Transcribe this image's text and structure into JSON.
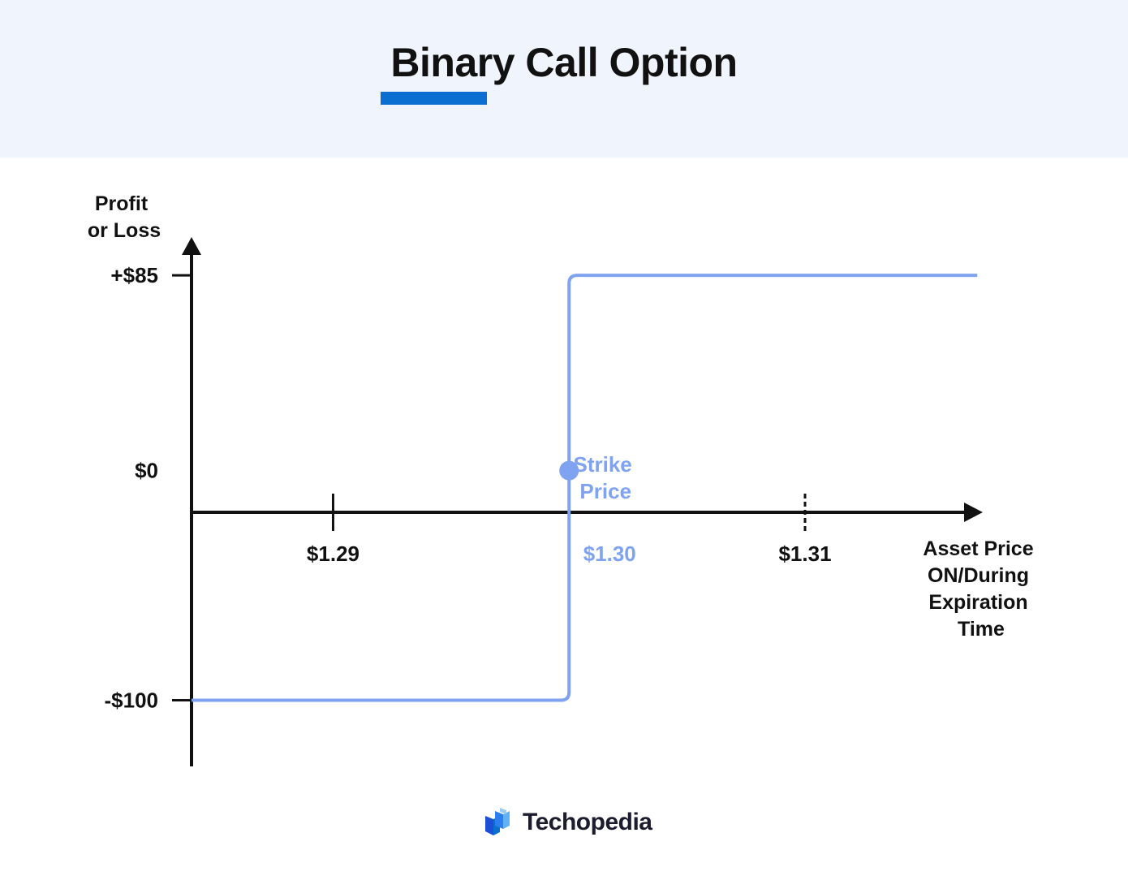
{
  "header": {
    "title": "Binary Call Option",
    "accent_color": "#0a6fd1",
    "background": "#eff4fd"
  },
  "chart_data": {
    "type": "line",
    "title": "Binary Call Option",
    "ylabel_lines": [
      "Profit",
      "or Loss"
    ],
    "xlabel_lines": [
      "Asset Price",
      "ON/During",
      "Expiration",
      "Time"
    ],
    "y_ticks": [
      {
        "value": 85,
        "label": "+$85"
      },
      {
        "value": 0,
        "label": "$0"
      },
      {
        "value": -100,
        "label": "-$100"
      }
    ],
    "x_ticks": [
      {
        "value": 1.29,
        "label": "$1.29"
      },
      {
        "value": 1.31,
        "label": "$1.31"
      }
    ],
    "strike": {
      "value": 1.3,
      "label": "$1.30",
      "annotation_lines": [
        "Strike",
        "Price"
      ]
    },
    "series": [
      {
        "color": "#7fa3f0",
        "x": [
          1.284,
          1.3,
          1.3,
          1.3173
        ],
        "y": [
          -100,
          -100,
          85,
          85
        ]
      }
    ],
    "ylim": [
      -150,
      125
    ],
    "xlim": [
      1.284,
      1.3176
    ],
    "grid": false,
    "legend": "none"
  },
  "footer": {
    "brand": "Techopedia",
    "logo_icon": "techopedia-logo-icon"
  }
}
